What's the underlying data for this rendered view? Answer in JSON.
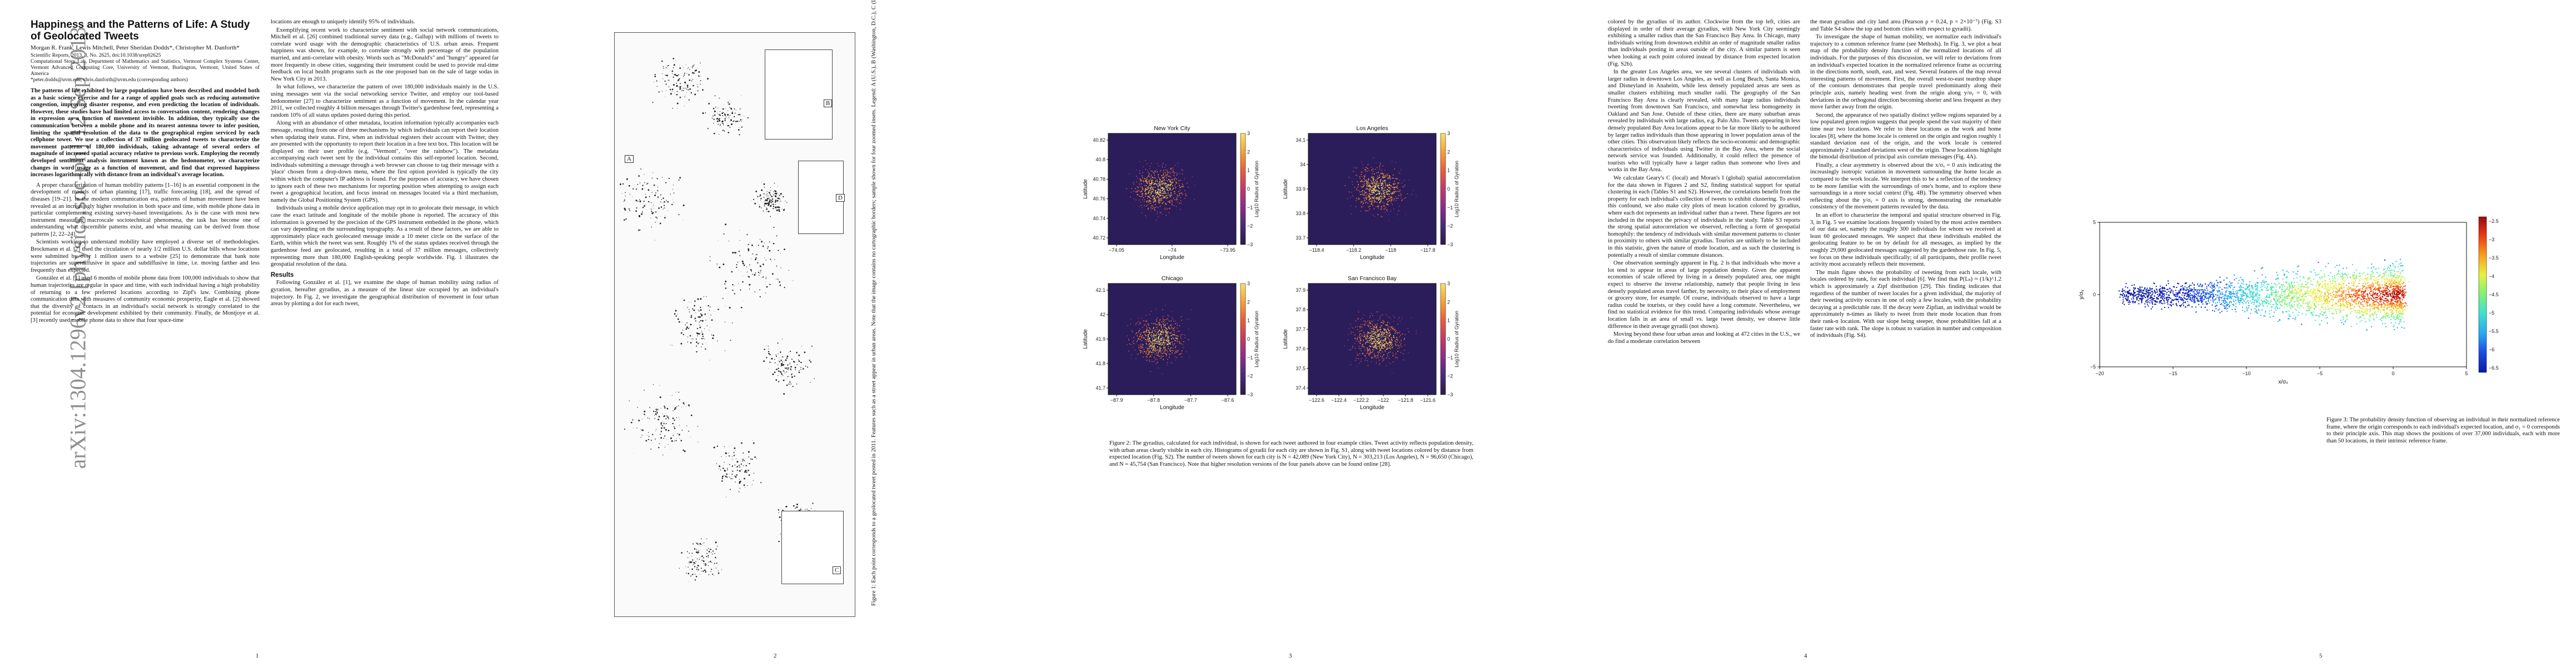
{
  "page1": {
    "arxiv_stamp": "arXiv:1304.1296v2  [physics.soc-ph]  12 Sep 2013",
    "title": "Happiness and the Patterns of Life: A Study of Geolocated Tweets",
    "authors": "Morgan R. Frank, Lewis Mitchell, Peter Sheridan Dodds*, Christopher M. Danforth*",
    "journal": "Scientific Reports, 2013, 3, No. 2625, doi:10.1038/srep02625",
    "affiliation": "Computational Story Lab, Department of Mathematics and Statistics, Vermont Complex Systems Center, Vermont Advanced Computing Core, University of Vermont, Burlington, Vermont, United States of America",
    "email": "*peter.dodds@uvm.edu, chris.danforth@uvm.edu (corresponding authors)",
    "abstract": "The patterns of life exhibited by large populations have been described and modeled both as a basic science exercise and for a range of applied goals such as reducing automotive congestion, improving disaster response, and even predicting the location of individuals. However, these studies have had limited access to conversation content, rendering changes in expression as a function of movement invisible. In addition, they typically use the communication between a mobile phone and its nearest antenna tower to infer position, limiting the spatial resolution of the data to the geographical region serviced by each cellphone tower. We use a collection of 37 million geolocated tweets to characterize the movement patterns of 180,000 individuals, taking advantage of several orders of magnitude of increased spatial accuracy relative to previous work. Employing the recently developed sentiment analysis instrument known as the hedonometer, we characterize changes in word usage as a function of movement, and find that expressed happiness increases logarithmically with distance from an individual's average location.",
    "paragraphs": [
      "A proper characterization of human mobility patterns [1–16] is an essential component in the development of models of urban planning [17], traffic forecasting [18], and the spread of diseases [19–21]. In the modern communication era, patterns of human movement have been revealed at an increasingly higher resolution in both space and time, with mobile phone data in particular complementing existing survey-based investigations. As is the case with most new instrument measuring macroscale sociotechnical phenomena, the task has become one of understanding what discernible patterns exist, and what meaning can be derived from those patterns [2, 22–24].",
      "Scientists working to understand mobility have employed a diverse set of methodologies. Brockmann et al. [7] used the circulation of nearly 1/2 million U.S. dollar bills whose locations were submitted by over 1 million users to a website [25] to demonstrate that bank note trajectories are superdiffusive in space and subdiffusive in time, i.e. moving farther and less frequently than expected.",
      "González et al. [1] used 6 months of mobile phone data from 100,000 individuals to show that human trajectories are regular in space and time, with each individual having a high probability of returning to a few preferred locations according to Zipf's law. Combining phone communication data with measures of community economic prosperity, Eagle et al. [2] showed that the diversity of contacts in an individual's social network is strongly correlated to the potential for economic development exhibited by their community. Finally, de Montjoye et al. [3] recently used mobile phone data to show that four space-time"
    ],
    "col2_paragraphs": [
      "locations are enough to uniquely identify 95% of individuals.",
      "Exemplifying recent work to characterize sentiment with social network communications, Mitchell et al. [26] combined traditional survey data (e.g., Gallup) with millions of tweets to correlate word usage with the demographic characteristics of U.S. urban areas. Frequent happiness was shown, for example, to correlate strongly with percentage of the population married, and anti-correlate with obesity. Words such as \"McDonald's\" and \"hungry\" appeared far more frequently in obese cities, suggesting their instrument could be used to provide real-time feedback on local health programs such as the one proposed ban on the sale of large sodas in New York City in 2013.",
      "In what follows, we characterize the pattern of over 180,000 individuals mainly in the U.S. using messages sent via the social networking service Twitter, and employ our tool-based hedonometer [27] to characterize sentiment as a function of movement. In the calendar year 2011, we collected roughly 4 billion messages through Twitter's gardenhose feed, representing a random 10% of all status updates posted during this period.",
      "Along with an abundance of other metadata, location information typically accompanies each message, resulting from one of three mechanisms by which individuals can report their location when updating their status. First, when an individual registers their account with Twitter, they are presented with the opportunity to report their location in a free text box. This location will be displayed on their user profile (e.g. \"Vermont\", \"over the rainbow\"). The metadata accompanying each tweet sent by the individual contains this self-reported location. Second, individuals submitting a message through a web browser can choose to tag their message with a 'place' chosen from a drop-down menu, where the first option provided is typically the city within which the computer's IP address is found. For the purposes of accuracy, we have chosen to ignore each of these two mechanisms for reporting position when attempting to assign each tweet a geographical location, and focus instead on messages located via a third mechanism, namely the Global Positioning System (GPS).",
      "Individuals using a mobile device application may opt in to geolocate their message, in which case the exact latitude and longitude of the mobile phone is reported. The accuracy of this information is governed by the precision of the GPS instrument embedded in the phone, which can vary depending on the surrounding topography. As a result of these factors, we are able to approximately place each geolocated message inside a 10 meter circle on the surface of the Earth, within which the tweet was sent. Roughly 1% of the status updates received through the gardenhose feed are geolocated, resulting in a total of 37 million messages, collectively representing more than 180,000 English-speaking people worldwide. Fig. 1 illustrates the geospatial resolution of the data."
    ],
    "results_heading": "Results",
    "results_para": "Following González et al. [1], we examine the shape of human mobility using radius of gyration, hereafter gyradius, as a measure of the linear size occupied by an individual's trajectory. In Fig. 2, we investigate the geographical distribution of movement in four urban areas by plotting a dot for each tweet,",
    "page_number": "1"
  },
  "page2": {
    "panel_labels": [
      "A",
      "B",
      "C",
      "D"
    ],
    "side_caption": "Figure 1: Each point corresponds to a geolocated tweet posted in 2011. Features such as a street appear in urban areas. Note that the image contains no cartographic borders; sample shown for four zoomed insets. Legend: A (U.S.), B (Washington, D.C.), C (Lake Tahoe), D (Atlanta).",
    "page_number": "2"
  },
  "page3": {
    "figure_caption": "Figure 2: The gyradius, calculated for each individual, is shown for each tweet authored in four example cities. Tweet activity reflects population density, with urban areas clearly visible in each city. Histograms of gyradii for each city are shown in Fig. S1, along with tweet locations colored by distance from expected location (Fig. S2). The number of tweets shown for each city is N = 42,089 (New York City), N = 303,213 (Los Angeles), N = 96,650 (Chicago), and N = 45,754 (San Francisco). Note that higher resolution versions of the four panels above can be found online [28].",
    "colorbar_label": "Log10 Radius of Gyration",
    "page_number": "3"
  },
  "page4": {
    "col1_paragraphs": [
      "colored by the gyradius of its author. Clockwise from the top left, cities are displayed in order of their average gyradius, with New York City seemingly exhibiting a smaller radius than the San Francisco Bay Area. In Chicago, many individuals writing from downtown exhibit an order of magnitude smaller radius than individuals posting in areas outside of the city. A similar pattern is seen when looking at each point colored instead by distance from expected location (Fig. S2b).",
      "In the greater Los Angeles area, we see several clusters of individuals with larger radius in downtown Los Angeles, as well as Long Beach, Santa Monica, and Disneyland in Anaheim, while less densely populated areas are seen as smaller clusters exhibiting much smaller radii. The geography of the San Francisco Bay Area is clearly revealed, with many large radius individuals tweeting from downtown San Francisco, and somewhat less homogeneity in Oakland and San Jose. Outside of these cities, there are many suburban areas revealed by individuals with large radius, e.g. Palo Alto. Tweets appearing in less densely populated Bay Area locations appear to be far more likely to be authored by larger radius individuals than those appearing in lower population areas of the other cities. This observation likely reflects the socio-economic and demographic characteristics of individuals using Twitter in the Bay Area, where the social network service was founded. Additionally, it could reflect the presence of tourists who will typically have a larger radius than someone who lives and works in the Bay Area.",
      "We calculate Geary's C (local) and Moran's I (global) spatial autocorrelation for the data shown in Figures 2 and S2, finding statistical support for spatial clustering in each (Tables S1 and S2). However, the correlations benefit from the property for each individual's collection of tweets to exhibit clustering. To avoid this confound, we also make city plots of mean location colored by gyradius, where each dot represents an individual rather than a tweet. These figures are not included in the respect the privacy of individuals in the study. Table S3 reports the strong spatial autocorrelation we observed, reflecting a form of geospatial homophily: the tendency of individuals with similar movement patterns to cluster in proximity to others with similar gyradius. Tourists are unlikely to be included in this statistic, given the nature of mode location, and as such the clustering is potentially a result of similar commute distances.",
      "One observation seemingly apparent in Fig. 2 is that individuals who move a lot tend to appear in areas of large population density. Given the apparent economies of scale offered by living in a densely populated area, one might expect to observe the inverse relationship, namely that people living in less densely populated areas travel farther, by necessity, to their place of employment or grocery store, for example. Of course, individuals observed to have a large radius could be tourists, or they could have a long commute. Nevertheless, we find no statistical evidence for this trend. Comparing individuals whose average location falls in an area of small vs. large tweet density, we observe little difference in their average gyradii (not shown).",
      "Moving beyond these four urban areas and looking at 472 cities in the U.S., we do find a moderate correlation between"
    ],
    "col2_paragraphs": [
      "the mean gyradius and city land area (Pearson ρ = 0.24, p = 2×10⁻⁷) (Fig. S3 and Table S4 show the top and bottom cities with respect to gyradii).",
      "To investigate the shape of human mobility, we normalize each individual's trajectory to a common reference frame (see Methods). In Fig. 3, we plot a heat map of the probability density function of the normalized locations of all individuals. For the purposes of this discussion, we will refer to deviations from an individual's expected location in the normalized reference frame as occurring in the directions north, south, east, and west. Several features of the map reveal interesting patterns of movement. First, the overall west-to-east teardrop shape of the contours demonstrates that people travel predominantly along their principle axis, namely heading west from the origin along y/σᵧ = 0, with deviations in the orthogonal direction becoming shorter and less frequent as they move farther away from the origin.",
      "Second, the appearance of two spatially distinct yellow regions separated by a low populated green region suggests that people spend the vast majority of their time near two locations. We refer to these locations as the work and home locales [8], where the home locale is centered on the origin and region roughly 1 standard deviation east of the origin, and the work locale is centered approximately 2 standard deviations west of the origin. These locations highlight the bimodal distribution of principal axis correlate messages (Fig. 4A).",
      "Finally, a clear asymmetry is observed about the x/σₓ = 0 axis indicating the increasingly isotropic variation in movement surrounding the home locale as compared to the work locale. We interpret this to be a reflection of the tendency to be more familiar with the surroundings of one's home, and to explore these surroundings in a more social context (Fig. 4B). The symmetry observed when reflecting about the y/σᵧ = 0 axis is strong, demonstrating the remarkable consistency of the movement patterns revealed by the data.",
      "In an effort to characterize the temporal and spatial structure observed in Fig. 3, in Fig. 5 we examine locations frequently visited by the most active members of our data set, namely the roughly 300 individuals for whom we received at least 60 geolocated messages. We suspect that these individuals enabled the geolocating feature to be on by default for all messages, as implied by the roughly 29,000 geolocated messages suggested by the gardenhose rate. In Fig. 5, we focus on these individuals specifically; of all participants, their profile tweet activity most accurately reflects their movement.",
      "The main figure shows the probability of tweeting from each locale, with locales ordered by rank, for each individual [6]. We find that P(Lₖ) ≈ (1/k)^1.2 which is approximately a Zipf distribution [29]. This finding indicates that regardless of the number of tweet locales for a given individual, the majority of their tweeting activity occurs in one of only a few locales, with the probability decaying at a predictable rate. If the decay were Zipfian, an individual would be approximately n-times as likely to tweet from their mode location than from their rank-n location. With our slope being steeper, those probabilities fall at a faster rate with rank. The slope is robust to variation in number and composition of individuals (Fig. S4)."
    ],
    "page_number": "4"
  },
  "page5": {
    "caption": "Figure 3: The probability density function of observing an individual in their normalized reference frame, where the origin corresponds to each individual's expected location, and σ₁ = 0 corresponds to their principle axis. This map shows the positions of over 37,000 individuals, each with more than 50 locations, in their intrinsic reference frame.",
    "page_number": "5"
  },
  "chart_data": [
    {
      "type": "heatmap",
      "panel": "New York City",
      "title": "New York City",
      "xlabel": "Longitude",
      "ylabel": "Latitude",
      "x_ticks": [
        "−74.05",
        "−74",
        "−73.95"
      ],
      "y_ticks": [
        "40.82",
        "40.8",
        "40.78",
        "40.76",
        "40.74",
        "40.72"
      ],
      "colorbar_ticks": [
        "3",
        "2",
        "1",
        "0",
        "−1",
        "−2",
        "−3"
      ],
      "colorbar_label": "Log10 Radius of Gyration"
    },
    {
      "type": "heatmap",
      "panel": "Los Angeles",
      "title": "Los Angeles",
      "xlabel": "Longitude",
      "ylabel": "Latitude",
      "x_ticks": [
        "−118.4",
        "−118.2",
        "−118",
        "−117.8"
      ],
      "y_ticks": [
        "34.1",
        "34",
        "33.9",
        "33.8",
        "33.7"
      ],
      "colorbar_ticks": [
        "3",
        "2",
        "1",
        "0",
        "−1",
        "−2",
        "−3"
      ],
      "colorbar_label": "Log10 Radius of Gyration"
    },
    {
      "type": "heatmap",
      "panel": "Chicago",
      "title": "Chicago",
      "xlabel": "Longitude",
      "ylabel": "Latitude",
      "x_ticks": [
        "−87.9",
        "−87.8",
        "−87.7",
        "−87.6"
      ],
      "y_ticks": [
        "42.1",
        "42",
        "41.9",
        "41.8",
        "41.7"
      ],
      "colorbar_ticks": [
        "3",
        "2",
        "1",
        "0",
        "−1",
        "−2",
        "−3"
      ],
      "colorbar_label": "Log10 Radius of Gyration"
    },
    {
      "type": "heatmap",
      "panel": "San Francisco Bay",
      "title": "San Francisco Bay",
      "xlabel": "Longitude",
      "ylabel": "Latitude",
      "x_ticks": [
        "−122.6",
        "−122.4",
        "−122.2",
        "−122",
        "−121.8",
        "−121.6"
      ],
      "y_ticks": [
        "37.9",
        "37.8",
        "37.7",
        "37.6",
        "37.5",
        "37.4"
      ],
      "colorbar_ticks": [
        "3",
        "2",
        "1",
        "0",
        "−1",
        "−2",
        "−3"
      ],
      "colorbar_label": "Log10 Radius of Gyration"
    },
    {
      "type": "heatmap",
      "panel": "Figure 3",
      "xlabel": "x/σₓ",
      "ylabel": "y/σᵧ",
      "xlim": [
        -20,
        5
      ],
      "ylim": [
        -5,
        5
      ],
      "x_ticks": [
        "−20",
        "−15",
        "−10",
        "−5",
        "0",
        "5"
      ],
      "y_ticks": [
        "5",
        "0",
        "−5"
      ],
      "colorbar_ticks": [
        "−2.5",
        "−3",
        "−3.5",
        "−4",
        "−4.5",
        "−5",
        "−5.5",
        "−6",
        "−6.5"
      ]
    }
  ]
}
